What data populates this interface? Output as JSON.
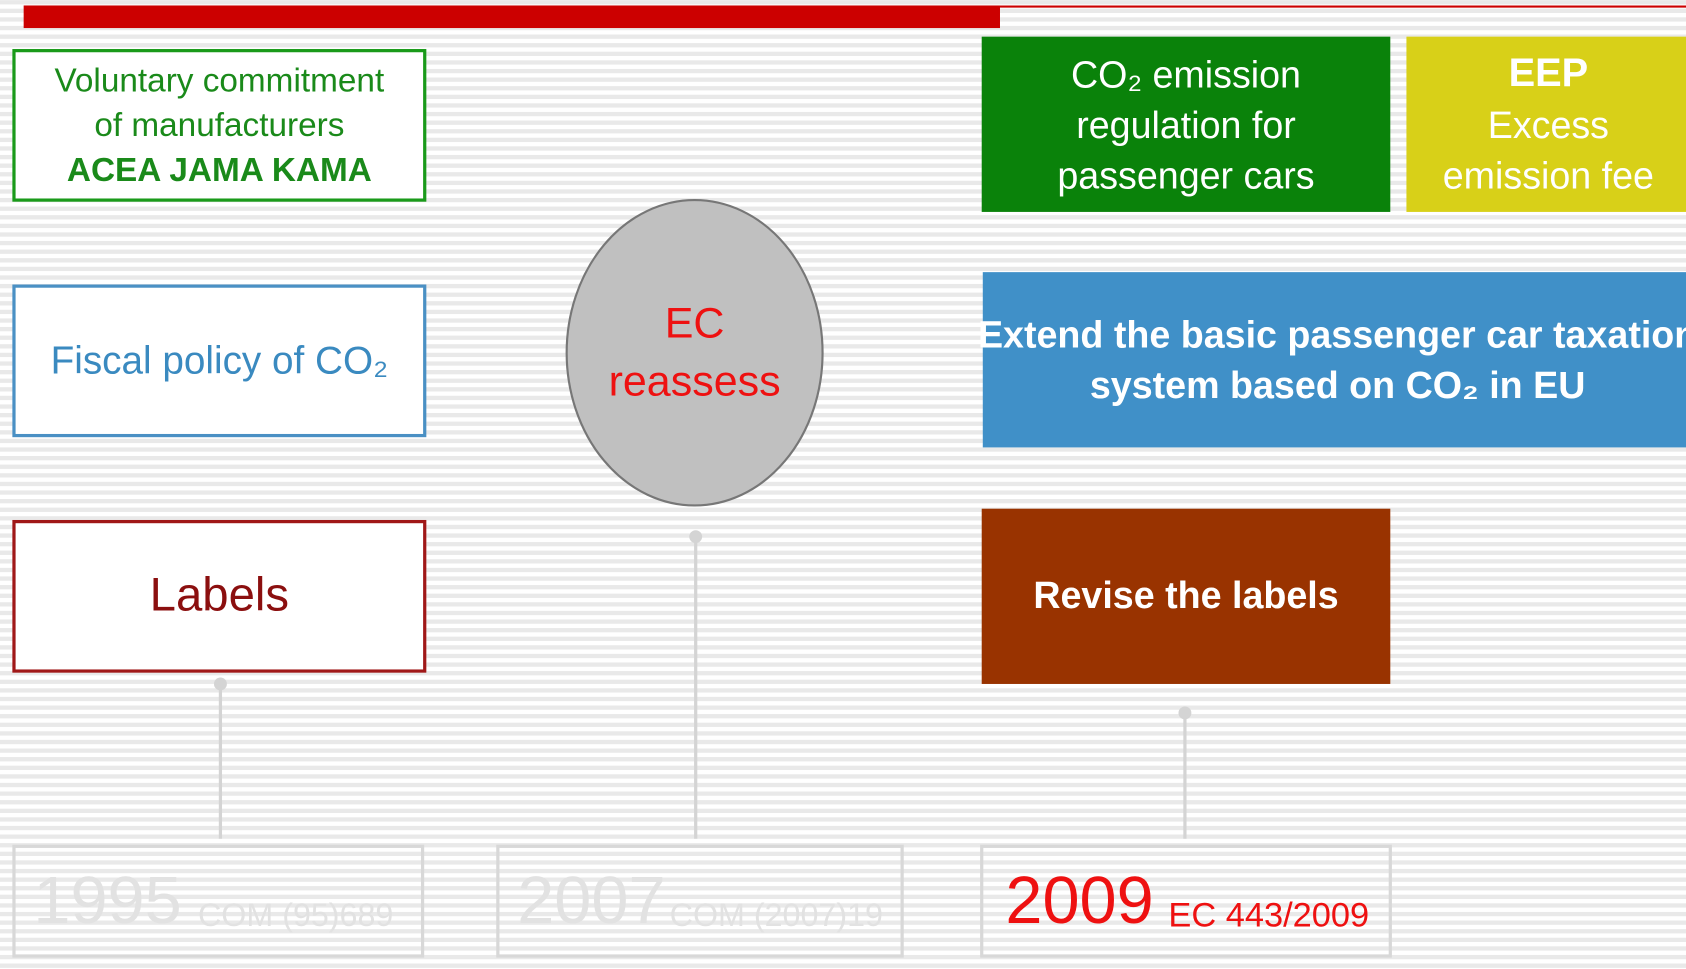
{
  "boxes": {
    "voluntary": {
      "lines": [
        "Voluntary commitment",
        "of manufacturers",
        "ACEA JAMA KAMA"
      ]
    },
    "fiscal": {
      "text": "Fiscal policy of CO₂"
    },
    "labels": {
      "text": "Labels"
    },
    "ec": {
      "lines": [
        "EC",
        "reassess"
      ]
    },
    "regulation": {
      "lines": [
        "CO₂ emission",
        "regulation for",
        "passenger cars"
      ]
    },
    "eep": {
      "lines": [
        "EEP",
        "Excess",
        "emission fee"
      ]
    },
    "extend": {
      "lines": [
        "Extend the basic passenger car taxation",
        "system based on CO₂ in EU"
      ]
    },
    "revise": {
      "text": "Revise the labels"
    }
  },
  "timeline": [
    {
      "year": "1995",
      "ref": "COM (95)689"
    },
    {
      "year": "2007",
      "ref": "COM (2007)19"
    },
    {
      "year": "2009",
      "ref": "EC 443/2009"
    }
  ]
}
